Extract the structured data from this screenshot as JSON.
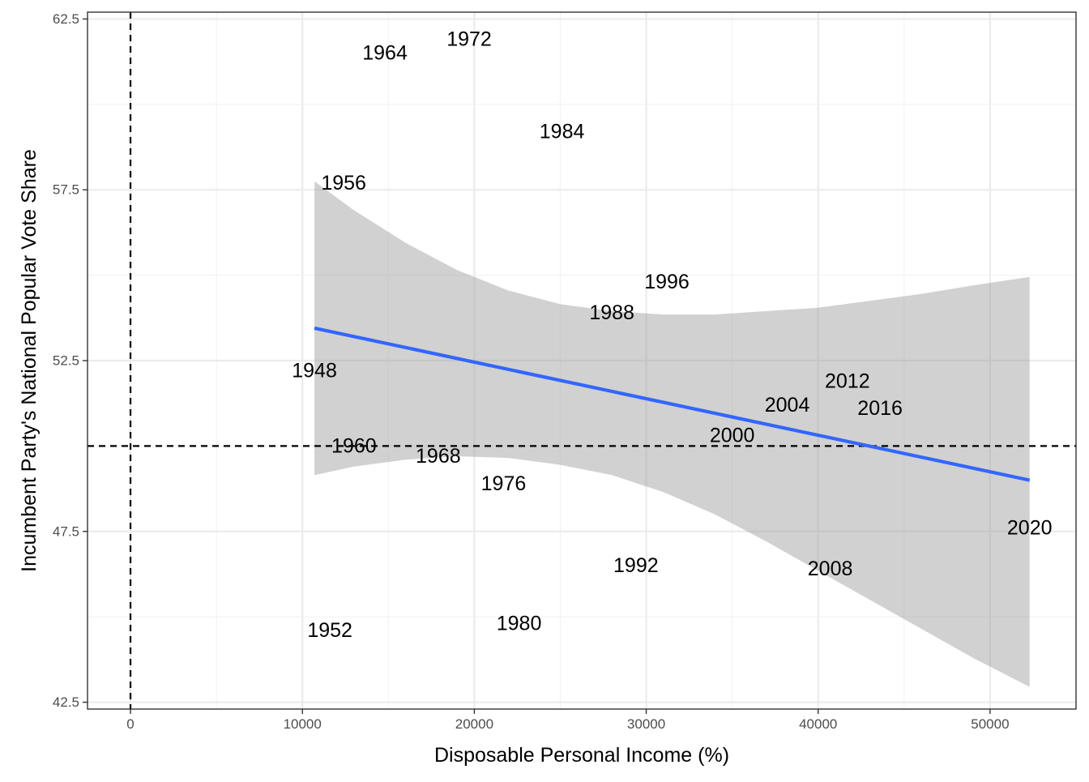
{
  "chart_data": {
    "type": "scatter",
    "title": "",
    "xlabel": "Disposable Personal Income (%)",
    "ylabel": "Incumbent Party's National Popular Vote Share",
    "xlim": [
      -2500,
      55000
    ],
    "ylim": [
      42.3,
      62.7
    ],
    "x_ticks": [
      0,
      10000,
      20000,
      30000,
      40000,
      50000
    ],
    "y_ticks": [
      42.5,
      47.5,
      52.5,
      57.5,
      62.5
    ],
    "x_tick_labels": [
      "0",
      "10000",
      "20000",
      "30000",
      "40000",
      "50000"
    ],
    "y_tick_labels": [
      "42.5",
      "47.5",
      "52.5",
      "57.5",
      "62.5"
    ],
    "grid": true,
    "point_labels_only": true,
    "points": [
      {
        "label": "1948",
        "x": 10700,
        "y": 52.2
      },
      {
        "label": "1952",
        "x": 11600,
        "y": 44.6
      },
      {
        "label": "1956",
        "x": 12400,
        "y": 57.7
      },
      {
        "label": "1960",
        "x": 13000,
        "y": 50.0
      },
      {
        "label": "1964",
        "x": 14800,
        "y": 61.5
      },
      {
        "label": "1968",
        "x": 17900,
        "y": 49.7
      },
      {
        "label": "1972",
        "x": 19700,
        "y": 61.9
      },
      {
        "label": "1976",
        "x": 21700,
        "y": 48.9
      },
      {
        "label": "1980",
        "x": 22600,
        "y": 44.8
      },
      {
        "label": "1984",
        "x": 25100,
        "y": 59.2
      },
      {
        "label": "1988",
        "x": 28000,
        "y": 53.9
      },
      {
        "label": "1992",
        "x": 29400,
        "y": 46.5
      },
      {
        "label": "1996",
        "x": 31200,
        "y": 54.8
      },
      {
        "label": "2000",
        "x": 35000,
        "y": 50.3
      },
      {
        "label": "2004",
        "x": 38200,
        "y": 51.2
      },
      {
        "label": "2008",
        "x": 40700,
        "y": 46.4
      },
      {
        "label": "2012",
        "x": 41700,
        "y": 51.9
      },
      {
        "label": "2016",
        "x": 43600,
        "y": 51.1
      },
      {
        "label": "2020",
        "x": 52300,
        "y": 47.6
      }
    ],
    "fit_line": {
      "method": "lm",
      "color": "#3366FF",
      "x": [
        10700,
        52300
      ],
      "y": [
        53.45,
        49.0
      ]
    },
    "confidence_band": {
      "color": "#999999",
      "x": [
        10700,
        13000,
        16000,
        19000,
        22000,
        25000,
        28000,
        31000,
        34000,
        37000,
        40000,
        43000,
        46000,
        49000,
        52300
      ],
      "upper": [
        57.75,
        56.9,
        55.95,
        55.15,
        54.55,
        54.15,
        53.95,
        53.85,
        53.85,
        53.95,
        54.05,
        54.25,
        54.45,
        54.7,
        54.95
      ],
      "lower": [
        49.15,
        49.4,
        49.6,
        49.7,
        49.65,
        49.45,
        49.15,
        48.65,
        48.0,
        47.2,
        46.35,
        45.5,
        44.65,
        43.8,
        42.95
      ]
    },
    "reference_lines": [
      {
        "orientation": "vertical",
        "value": 0,
        "style": "dashed"
      },
      {
        "orientation": "horizontal",
        "value": 50,
        "style": "dashed"
      }
    ]
  }
}
